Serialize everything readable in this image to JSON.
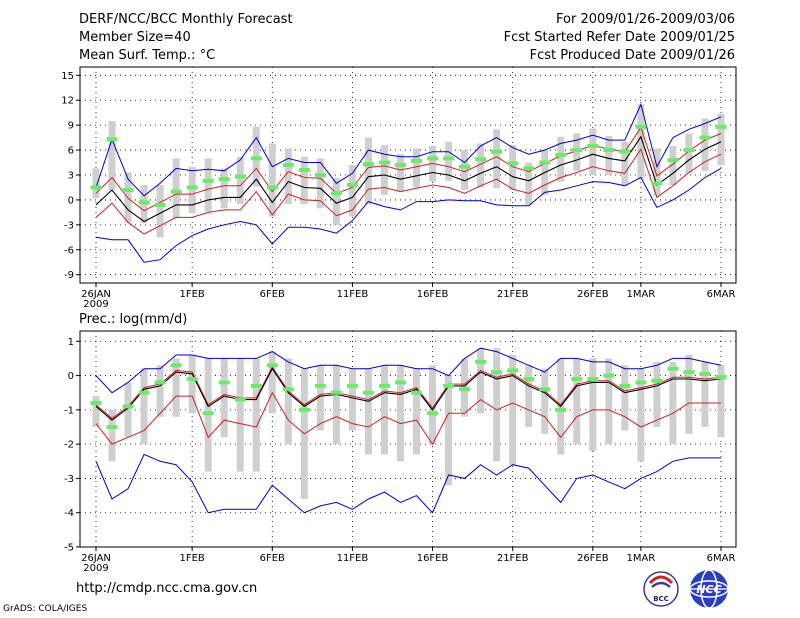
{
  "header": {
    "title": "DERF/NCC/BCC Monthly Forecast",
    "member_size": "Member Size=40",
    "variable_1": "Mean Surf. Temp.: °C",
    "period": "For 2009/01/26-2009/03/06",
    "fcst_started": "Fcst Started Refer Date 2009/01/25",
    "fcst_produced": "Fcst Produced Date 2009/01/26"
  },
  "footer": {
    "url": "http://cmdp.ncc.cma.gov.cn",
    "credit": "GrADS: COLA/IGES",
    "logo_bcc_text": "BCC",
    "logo_ncc_text": "NCC"
  },
  "colors": {
    "box": "#cfcfcf",
    "median": "#66ee66",
    "mean": "#000000",
    "spread_low": "#cc2222",
    "spread_high": "#cc2222",
    "envelope": "#0000cc"
  },
  "chart_data": [
    {
      "type": "line",
      "title": "Mean Surf. Temp.: °C",
      "x_tick_labels": [
        "26JAN",
        "1FEB",
        "6FEB",
        "11FEB",
        "16FEB",
        "21FEB",
        "26FEB",
        "1MAR",
        "6MAR"
      ],
      "x_tick_days": [
        0,
        6,
        11,
        16,
        21,
        26,
        31,
        34,
        39
      ],
      "x_sublabel": "2009",
      "ylim": [
        -10,
        16
      ],
      "yticks": [
        -9,
        -6,
        -3,
        0,
        3,
        6,
        9,
        12,
        15
      ],
      "box_top": [
        3.8,
        9.5,
        3.3,
        1.8,
        1.8,
        5,
        4,
        5,
        3.8,
        5.2,
        8.8,
        6.8,
        6.2,
        5.2,
        5,
        2.6,
        4.2,
        7.5,
        6.6,
        5.5,
        6.2,
        6.5,
        7,
        6,
        6.8,
        8.5,
        6.6,
        4.5,
        6,
        7.6,
        8,
        8.6,
        7.7,
        7,
        11.5,
        6.2,
        6.5,
        8,
        9.8,
        10.4
      ],
      "box_bottom": [
        0.2,
        1.2,
        -2.8,
        -2.8,
        -4.5,
        -2.2,
        -1.6,
        -1.4,
        -1,
        -0.5,
        1.6,
        -2,
        -0.5,
        -0.5,
        -1,
        -3,
        -2,
        -0.5,
        0.6,
        1,
        1.5,
        2.2,
        2.3,
        1.2,
        1.5,
        1.4,
        1.2,
        -0.6,
        0.6,
        2.2,
        3.5,
        3,
        3,
        1.8,
        2.5,
        0.5,
        1.8,
        3.2,
        3.5,
        4.2
      ],
      "median": [
        1.5,
        7.3,
        1.2,
        -0.3,
        -0.6,
        1,
        1.5,
        2.3,
        2.5,
        2.8,
        5,
        1.5,
        4.2,
        3.6,
        3,
        0.8,
        1.8,
        4.3,
        4.5,
        4.2,
        4.7,
        5,
        5,
        4,
        4.9,
        5.8,
        4.4,
        3.8,
        4.5,
        5.4,
        6,
        6.5,
        6,
        5.8,
        8.8,
        2,
        4.8,
        6,
        7.5,
        8.8
      ],
      "mean": [
        -0.6,
        1.2,
        -1.2,
        -2.6,
        -1.6,
        -0.6,
        -0.6,
        0,
        0.3,
        0.3,
        2.5,
        -0.3,
        2.2,
        1.5,
        1.4,
        -0.4,
        0.3,
        2.8,
        3,
        2.5,
        2.9,
        3.3,
        3,
        2.3,
        3.2,
        4,
        2.8,
        2.3,
        3.3,
        4.2,
        4.8,
        5.5,
        5,
        4.7,
        7.6,
        1.8,
        3.2,
        4.8,
        6.1,
        7
      ],
      "spread_high": [
        0.8,
        2.7,
        0.2,
        -1.3,
        -0.3,
        0.7,
        0.7,
        1.3,
        1.7,
        1.7,
        3.8,
        1,
        3.4,
        2.7,
        2.6,
        0.8,
        1.5,
        3.9,
        4.1,
        3.6,
        4,
        4.4,
        4,
        3.4,
        4.3,
        5.2,
        4,
        3.4,
        4.4,
        5.3,
        5.9,
        6.6,
        6.1,
        5.8,
        8.7,
        2.9,
        4.3,
        5.9,
        7.2,
        8
      ],
      "spread_low": [
        -2.1,
        -0.4,
        -2.7,
        -4.1,
        -3.1,
        -2.1,
        -2.1,
        -1.5,
        -1.2,
        -1.2,
        1,
        -1.8,
        0.7,
        0,
        -0.1,
        -1.9,
        -1.2,
        1.3,
        1.5,
        1,
        1.4,
        1.8,
        1.5,
        0.8,
        1.7,
        2.5,
        1.3,
        0.8,
        1.8,
        2.7,
        3.3,
        4,
        3.5,
        3.2,
        6.1,
        0.3,
        1.7,
        3.3,
        4.6,
        5.5
      ],
      "envelope_high": [
        1.5,
        7.3,
        2.5,
        0.5,
        2,
        3.8,
        3.5,
        3.7,
        3.5,
        4.8,
        7.5,
        4,
        5,
        4.5,
        4.5,
        2,
        3.2,
        6,
        5.5,
        5.2,
        5.2,
        5.8,
        5.8,
        4.5,
        6.5,
        7.5,
        6.3,
        5.5,
        6,
        6.8,
        7.2,
        7.8,
        7.2,
        7.2,
        11.5,
        4,
        7.5,
        8.5,
        9.2,
        10
      ],
      "envelope_low": [
        -4.5,
        -4.8,
        -4.8,
        -7.5,
        -7.2,
        -5.5,
        -4.3,
        -3.5,
        -3,
        -2.6,
        -3,
        -5.3,
        -3.3,
        -3.3,
        -3.5,
        -4,
        -2.5,
        -0.2,
        -0.8,
        -1.2,
        -0.2,
        -0.2,
        0,
        -0.1,
        -0.1,
        -0.6,
        -0.7,
        -0.7,
        0.9,
        1.2,
        1.7,
        2.2,
        2.1,
        1.7,
        2.7,
        -0.9,
        0,
        1.2,
        2.7,
        3.8
      ]
    },
    {
      "type": "line",
      "title": "Prec.: log(mm/d)",
      "x_tick_labels": [
        "26JAN",
        "1FEB",
        "6FEB",
        "11FEB",
        "16FEB",
        "21FEB",
        "26FEB",
        "1MAR",
        "6MAR"
      ],
      "x_tick_days": [
        0,
        6,
        11,
        16,
        21,
        26,
        31,
        34,
        39
      ],
      "x_sublabel": "2009",
      "ylim": [
        -5,
        1.3
      ],
      "yticks": [
        -5,
        -4,
        -3,
        -2,
        -1,
        0,
        1
      ],
      "box_top": [
        -0.6,
        -1,
        -0.2,
        0.2,
        0.3,
        0.5,
        0.6,
        0.5,
        0.5,
        0.5,
        0.5,
        0.7,
        0.5,
        0.2,
        0.3,
        0.3,
        0.2,
        0.2,
        0.3,
        0.3,
        0.2,
        0.3,
        0,
        0.5,
        0.8,
        0.8,
        0.6,
        0.3,
        0.2,
        0.5,
        0.5,
        0.5,
        0.5,
        0.3,
        0.2,
        0.4,
        0.4,
        0.6,
        0.4,
        0.3
      ],
      "box_bottom": [
        -1.5,
        -2.5,
        -1.8,
        -2,
        -1.2,
        -1.2,
        -1.1,
        -2.8,
        -1.8,
        -2.8,
        -2.8,
        -1.1,
        -2,
        -3.6,
        -1.6,
        -2,
        -1.6,
        -2.3,
        -2.3,
        -2.5,
        -2.3,
        -2,
        -3.2,
        -1.2,
        -1.1,
        -2.5,
        -2.6,
        -1.5,
        -1.7,
        -2.3,
        -2,
        -2.2,
        -2,
        -1.6,
        -2.5,
        -1.5,
        -2,
        -1.7,
        -1.5,
        -1.8
      ],
      "median": [
        -0.8,
        -1.5,
        -0.9,
        -0.5,
        -0.2,
        0.3,
        -0.1,
        -1.1,
        -0.2,
        -0.7,
        -0.3,
        0.3,
        -0.4,
        -1,
        -0.3,
        -0.5,
        -0.3,
        -0.5,
        -0.3,
        -0.2,
        -0.5,
        -1.1,
        -0.3,
        -0.4,
        0.4,
        0.1,
        0.15,
        -0.1,
        -0.4,
        -1,
        -0.1,
        -0.1,
        0,
        -0.3,
        -0.2,
        -0.15,
        0.2,
        0.1,
        0.05,
        -0.05
      ],
      "mean": [
        -0.9,
        -1.3,
        -0.95,
        -0.4,
        -0.3,
        0.1,
        0.05,
        -0.9,
        -0.6,
        -0.7,
        -0.7,
        0.2,
        -0.5,
        -0.9,
        -0.6,
        -0.55,
        -0.65,
        -0.75,
        -0.5,
        -0.55,
        -0.4,
        -1,
        -0.3,
        -0.3,
        0.1,
        -0.1,
        0,
        -0.3,
        -0.5,
        -0.9,
        -0.3,
        -0.2,
        -0.2,
        -0.5,
        -0.4,
        -0.3,
        -0.1,
        -0.1,
        -0.15,
        -0.1
      ],
      "spread_high": [
        -0.85,
        -1.25,
        -0.9,
        -0.35,
        -0.25,
        0.15,
        0.1,
        -0.85,
        -0.55,
        -0.65,
        -0.65,
        0.25,
        -0.45,
        -0.85,
        -0.55,
        -0.5,
        -0.6,
        -0.7,
        -0.45,
        -0.5,
        -0.35,
        -0.95,
        -0.25,
        -0.25,
        0.15,
        -0.05,
        0.05,
        -0.25,
        -0.45,
        -0.85,
        -0.25,
        -0.15,
        -0.15,
        -0.45,
        -0.35,
        -0.25,
        -0.05,
        -0.05,
        -0.1,
        -0.05
      ],
      "spread_low": [
        -1.4,
        -2,
        -1.8,
        -1.6,
        -1.1,
        -0.6,
        -0.6,
        -1.8,
        -1.3,
        -1.4,
        -1.5,
        -0.5,
        -1.3,
        -1.7,
        -1.4,
        -1.2,
        -1.4,
        -1.5,
        -1.2,
        -1.4,
        -1.3,
        -2,
        -1.1,
        -1.1,
        -0.7,
        -1,
        -0.8,
        -1,
        -1.2,
        -1.8,
        -1.2,
        -1,
        -1,
        -1.2,
        -1.5,
        -1.3,
        -1.1,
        -0.8,
        -0.8,
        -0.8
      ],
      "envelope_high": [
        0,
        -0.5,
        -0.2,
        0.2,
        0.2,
        0.6,
        0.6,
        0.5,
        0.5,
        0.5,
        0.5,
        0.7,
        0.4,
        0.2,
        0.3,
        0.3,
        0.2,
        0.2,
        0.3,
        0.3,
        0.2,
        0.2,
        0,
        0.5,
        0.8,
        0.7,
        0.5,
        0.3,
        0.1,
        0.5,
        0.5,
        0.4,
        0.4,
        0.2,
        0.2,
        0.3,
        0.5,
        0.5,
        0.4,
        0.3
      ],
      "envelope_low": [
        -2.5,
        -3.6,
        -3.3,
        -2.3,
        -2.5,
        -2.6,
        -3.1,
        -4,
        -3.9,
        -3.9,
        -3.9,
        -3.2,
        -3.6,
        -4,
        -3.8,
        -3.7,
        -3.9,
        -3.6,
        -3.4,
        -3.7,
        -3.5,
        -4,
        -2.9,
        -3,
        -2.6,
        -2.9,
        -2.6,
        -2.7,
        -3.2,
        -3.7,
        -3,
        -2.9,
        -3.1,
        -3.3,
        -3,
        -2.8,
        -2.5,
        -2.4,
        -2.4,
        -2.4
      ]
    }
  ]
}
